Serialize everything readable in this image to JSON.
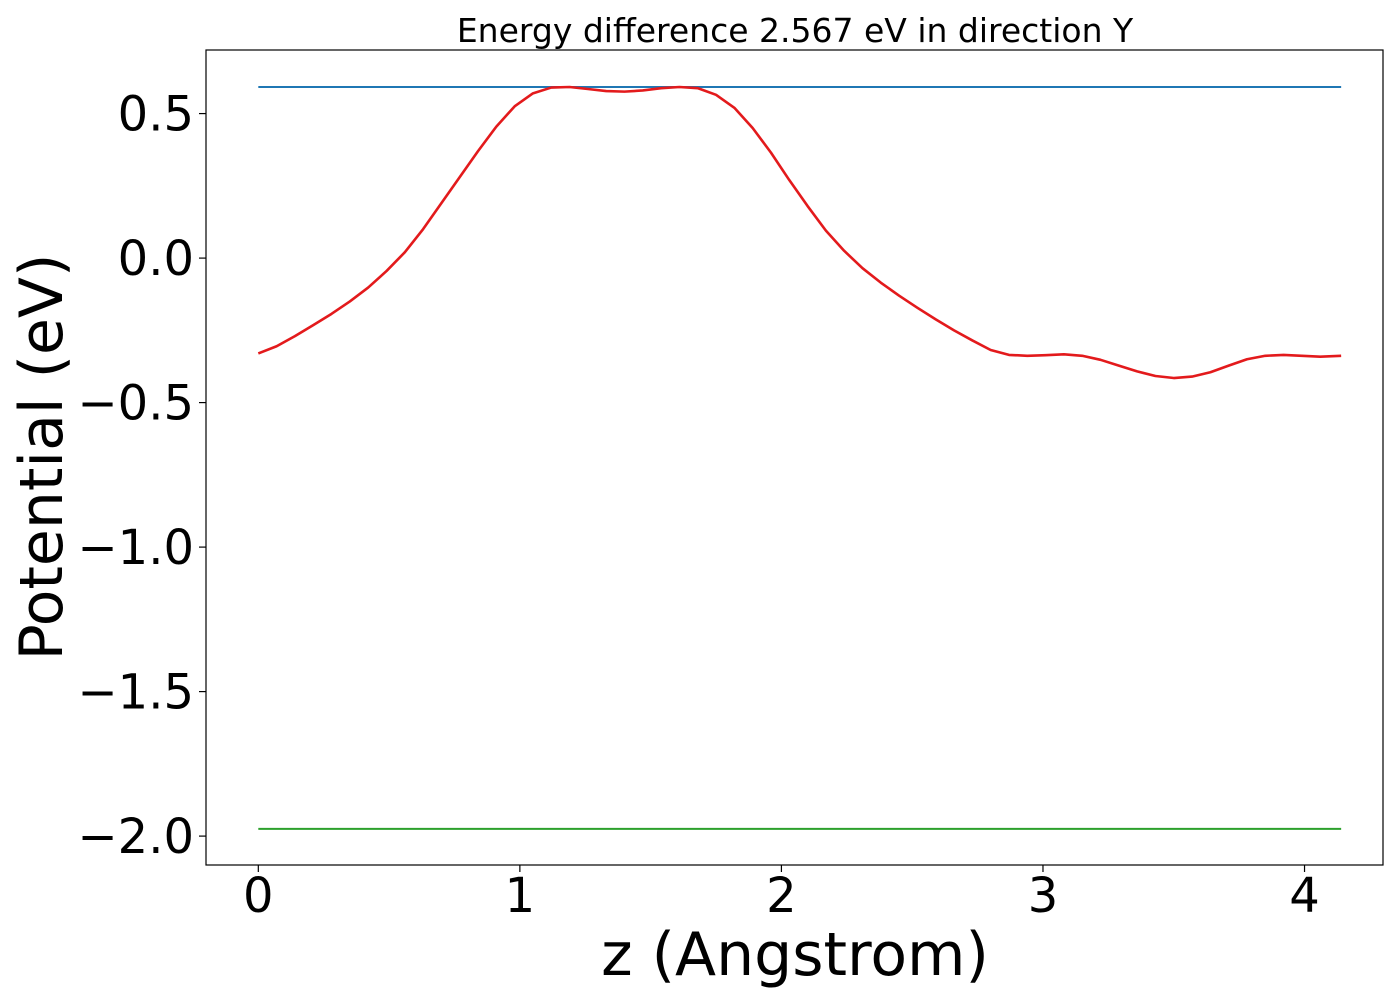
{
  "chart_data": {
    "type": "line",
    "title": "Energy difference 2.567 eV in direction Y",
    "xlabel": "z (Angstrom)",
    "ylabel": "Potential (eV)",
    "xlim": [
      -0.2,
      4.3
    ],
    "ylim": [
      -2.1,
      0.72
    ],
    "xticks": [
      0,
      1,
      2,
      3,
      4
    ],
    "xtick_labels": [
      "0",
      "1",
      "2",
      "3",
      "4"
    ],
    "yticks": [
      0.5,
      0.0,
      -0.5,
      -1.0,
      -1.5,
      -2.0
    ],
    "ytick_labels": [
      "0.5",
      "0.0",
      "−0.5",
      "−1.0",
      "−1.5",
      "−2.0"
    ],
    "grid": false,
    "legend": "none",
    "series": [
      {
        "color": "#1f77b4",
        "x": [
          0,
          4.14
        ],
        "y": [
          0.592,
          0.592
        ]
      },
      {
        "color": "#2ca02c",
        "x": [
          0,
          4.14
        ],
        "y": [
          -1.975,
          -1.975
        ]
      },
      {
        "color": "#e31a1c",
        "x": [
          0,
          0.07,
          0.14,
          0.21,
          0.28,
          0.35,
          0.42,
          0.49,
          0.56,
          0.63,
          0.7,
          0.77,
          0.84,
          0.91,
          0.98,
          1.05,
          1.12,
          1.19,
          1.26,
          1.33,
          1.4,
          1.47,
          1.54,
          1.61,
          1.68,
          1.75,
          1.82,
          1.89,
          1.96,
          2.03,
          2.1,
          2.17,
          2.24,
          2.31,
          2.38,
          2.45,
          2.52,
          2.59,
          2.66,
          2.73,
          2.8,
          2.87,
          2.94,
          3.01,
          3.08,
          3.15,
          3.22,
          3.29,
          3.36,
          3.43,
          3.5,
          3.57,
          3.64,
          3.71,
          3.78,
          3.85,
          3.92,
          3.99,
          4.06,
          4.14
        ],
        "y": [
          -0.33,
          -0.305,
          -0.27,
          -0.232,
          -0.193,
          -0.15,
          -0.102,
          -0.045,
          0.02,
          0.1,
          0.19,
          0.28,
          0.37,
          0.455,
          0.525,
          0.57,
          0.59,
          0.592,
          0.585,
          0.578,
          0.576,
          0.58,
          0.588,
          0.592,
          0.588,
          0.565,
          0.52,
          0.45,
          0.365,
          0.27,
          0.18,
          0.095,
          0.025,
          -0.035,
          -0.085,
          -0.13,
          -0.172,
          -0.212,
          -0.25,
          -0.285,
          -0.318,
          -0.335,
          -0.338,
          -0.336,
          -0.333,
          -0.338,
          -0.352,
          -0.372,
          -0.392,
          -0.408,
          -0.415,
          -0.41,
          -0.395,
          -0.372,
          -0.35,
          -0.338,
          -0.335,
          -0.338,
          -0.341,
          -0.338
        ]
      }
    ]
  }
}
